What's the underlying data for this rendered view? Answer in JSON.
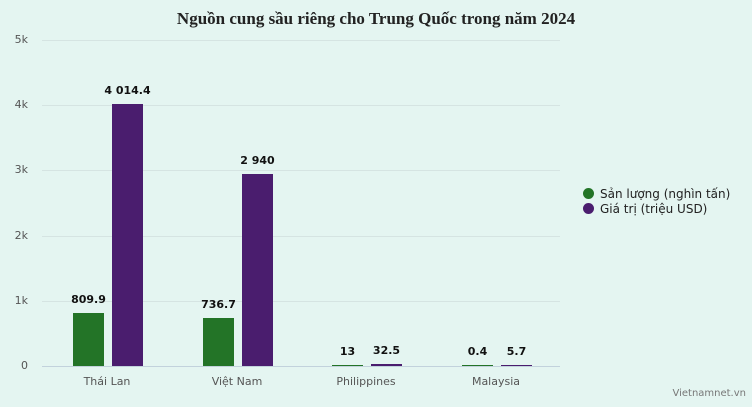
{
  "chart_data": {
    "type": "bar",
    "title": "Nguồn cung sầu riêng cho Trung Quốc trong năm 2024",
    "categories": [
      "Thái Lan",
      "Việt Nam",
      "Philippines",
      "Malaysia"
    ],
    "series": [
      {
        "name": "Sản lượng (nghìn tấn)",
        "color": "#237427",
        "values": [
          809.9,
          736.7,
          13,
          0.4
        ],
        "labels": [
          "809.9",
          "736.7",
          "13",
          "0.4"
        ]
      },
      {
        "name": "Giá trị (triệu USD)",
        "color": "#4a1d6e",
        "values": [
          4014.4,
          2940,
          32.5,
          5.7
        ],
        "labels": [
          "4 014.4",
          "2 940",
          "32.5",
          "5.7"
        ]
      }
    ],
    "yticks": [
      "0",
      "1k",
      "2k",
      "3k",
      "4k",
      "5k"
    ],
    "ylim": [
      0,
      5000
    ],
    "xlabel": "",
    "ylabel": "",
    "grid": true,
    "legend_position": "right"
  },
  "source": "Vietnamnet.vn"
}
